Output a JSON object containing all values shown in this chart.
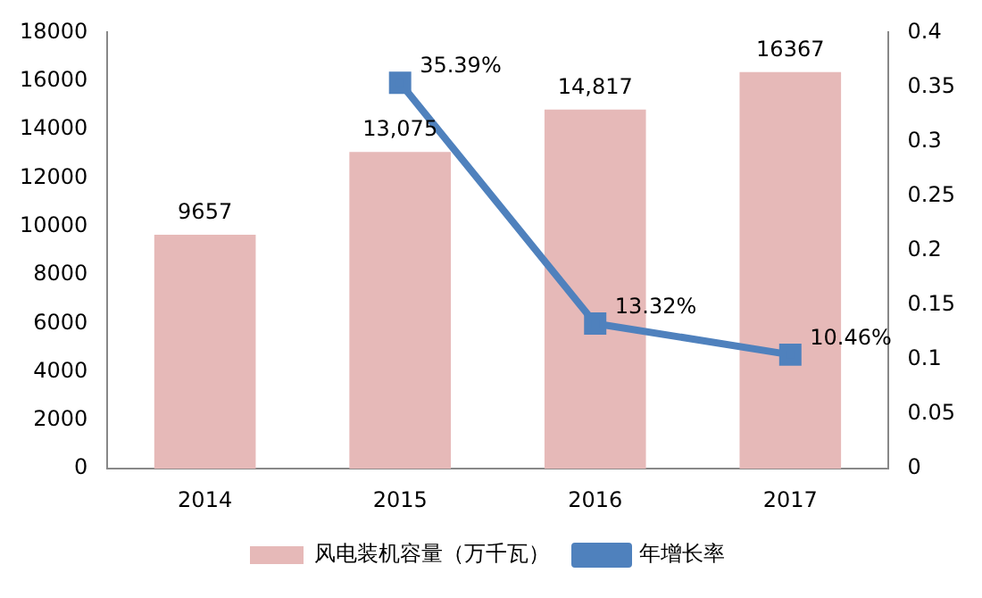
{
  "chart_data": {
    "type": "bar",
    "categories": [
      "2014",
      "2015",
      "2016",
      "2017"
    ],
    "series": [
      {
        "name": "风电装机容量（万千瓦）",
        "color": "#e6b9b8",
        "values": [
          9657,
          13075,
          14817,
          16367
        ],
        "value_labels": [
          "9657",
          "13,075",
          "14,817",
          "16367"
        ]
      },
      {
        "name": "年增长率",
        "type": "line",
        "axis": "y2",
        "color": "#4f81bd",
        "values": [
          null,
          0.3539,
          0.1332,
          0.1046
        ],
        "value_labels": [
          null,
          "35.39%",
          "13.32%",
          "10.46%"
        ]
      }
    ],
    "ylim": [
      0,
      18000
    ],
    "yticks": [
      0,
      2000,
      4000,
      6000,
      8000,
      10000,
      12000,
      14000,
      16000,
      18000
    ],
    "y2lim": [
      0,
      0.4
    ],
    "y2ticks": [
      0,
      0.05,
      0.1,
      0.15,
      0.2,
      0.25,
      0.3,
      0.35,
      0.4
    ],
    "grid": false,
    "legend": "bottom",
    "marker": "square",
    "line_style": "solid"
  }
}
